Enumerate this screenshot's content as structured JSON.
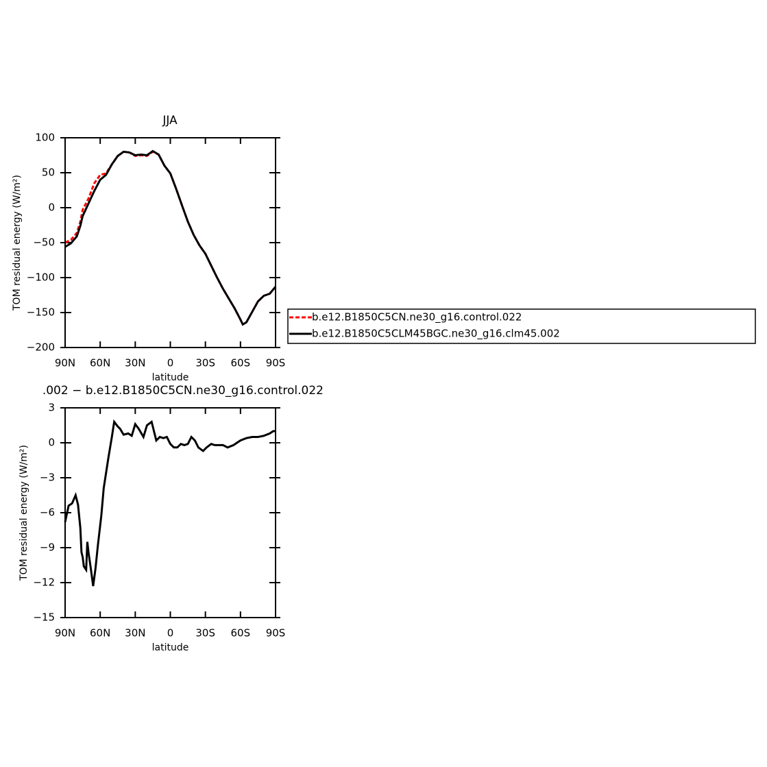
{
  "chart_data": [
    {
      "type": "line",
      "title": "JJA",
      "xlabel": "latitude",
      "ylabel": "TOM residual energy (W/m²)",
      "x": [
        90,
        85,
        80,
        77,
        75,
        70,
        65,
        60,
        55,
        50,
        45,
        40,
        35,
        30,
        25,
        20,
        15,
        10,
        5,
        0,
        -5,
        -10,
        -15,
        -20,
        -25,
        -30,
        -35,
        -40,
        -45,
        -50,
        -55,
        -60,
        -62,
        -65,
        -70,
        -75,
        -80,
        -85,
        -90
      ],
      "series": [
        {
          "name": "b.e12.B1850C5CN.ne30_g16.control.022",
          "color": "#ff0000",
          "dash": true,
          "values": [
            -50,
            -46,
            -36,
            -20,
            -3,
            13,
            35,
            47,
            49,
            62,
            74,
            80,
            79,
            74,
            75,
            74,
            80,
            76,
            60,
            49,
            27,
            3,
            -20,
            -39,
            -54,
            -66,
            -83,
            -100,
            -116,
            -130,
            -144,
            -160,
            -167,
            -164,
            -149,
            -134,
            -126,
            -123,
            -113
          ]
        },
        {
          "name": "b.e12.B1850C5CLM45BGC.ne30_g16.clm45.002",
          "color": "#000000",
          "dash": false,
          "values": [
            -56,
            -51,
            -41,
            -26,
            -12,
            6,
            24,
            40,
            47,
            62,
            74,
            80,
            79,
            75,
            76,
            75,
            81,
            76,
            60,
            49,
            27,
            3,
            -20,
            -39,
            -54,
            -66,
            -83,
            -100,
            -116,
            -130,
            -144,
            -160,
            -167,
            -164,
            -149,
            -134,
            -126,
            -123,
            -113
          ]
        }
      ],
      "xlim": [
        90,
        -90
      ],
      "xticks": [
        {
          "value": 90,
          "label": "90N"
        },
        {
          "value": 60,
          "label": "60N"
        },
        {
          "value": 30,
          "label": "30N"
        },
        0,
        {
          "value": -30,
          "label": "30S"
        },
        {
          "value": -60,
          "label": "60S"
        },
        {
          "value": -90,
          "label": "90S"
        }
      ],
      "ylim": [
        -200,
        100
      ],
      "yticks": [
        {
          "value": -200,
          "label": "−200"
        },
        {
          "value": -150,
          "label": "−150"
        },
        {
          "value": -100,
          "label": "−100"
        },
        {
          "value": -50,
          "label": "−50"
        },
        0,
        50,
        100
      ],
      "legend": "right"
    },
    {
      "type": "line",
      "title": ".002 − b.e12.B1850C5CN.ne30_g16.control.022",
      "xlabel": "latitude",
      "ylabel": "TOM residual energy (W/m²)",
      "x": [
        90,
        87,
        84,
        81,
        79,
        77,
        76,
        75,
        74,
        72,
        71,
        70,
        68,
        66,
        64,
        62,
        59,
        57,
        53,
        50,
        48,
        45,
        43,
        40,
        36,
        33,
        30,
        27,
        23,
        20,
        16,
        12,
        9,
        6,
        3,
        0,
        -3,
        -6,
        -9,
        -12,
        -15,
        -18,
        -21,
        -24,
        -28,
        -31,
        -35,
        -38,
        -41,
        -45,
        -49,
        -54,
        -60,
        -65,
        -70,
        -75,
        -80,
        -85,
        -88,
        -90
      ],
      "series": [
        {
          "color": "#000000",
          "dash": false,
          "values": [
            -6.8,
            -5.4,
            -5.2,
            -4.5,
            -5.3,
            -7.3,
            -9.4,
            -9.8,
            -10.6,
            -10.9,
            -8.5,
            -9.4,
            -10.8,
            -12.3,
            -10.8,
            -8.8,
            -6.2,
            -3.9,
            -1.3,
            0.5,
            1.8,
            1.4,
            1.2,
            0.7,
            0.8,
            0.6,
            1.6,
            1.2,
            0.5,
            1.5,
            1.8,
            0.2,
            0.5,
            0.4,
            0.5,
            -0.1,
            -0.4,
            -0.4,
            -0.1,
            -0.2,
            -0.1,
            0.5,
            0.2,
            -0.4,
            -0.7,
            -0.4,
            -0.1,
            -0.2,
            -0.2,
            -0.2,
            -0.4,
            -0.2,
            0.2,
            0.4,
            0.5,
            0.5,
            0.6,
            0.8,
            1.0,
            1.0
          ]
        }
      ],
      "xlim": [
        90,
        -90
      ],
      "xticks": [
        {
          "value": 90,
          "label": "90N"
        },
        {
          "value": 60,
          "label": "60N"
        },
        {
          "value": 30,
          "label": "30N"
        },
        0,
        {
          "value": -30,
          "label": "30S"
        },
        {
          "value": -60,
          "label": "60S"
        },
        {
          "value": -90,
          "label": "90S"
        }
      ],
      "ylim": [
        -15,
        3
      ],
      "yticks": [
        {
          "value": -15,
          "label": "−15"
        },
        {
          "value": -12,
          "label": "−12"
        },
        {
          "value": -9,
          "label": "−9"
        },
        {
          "value": -6,
          "label": "−6"
        },
        {
          "value": -3,
          "label": "−3"
        },
        0,
        3
      ]
    }
  ]
}
